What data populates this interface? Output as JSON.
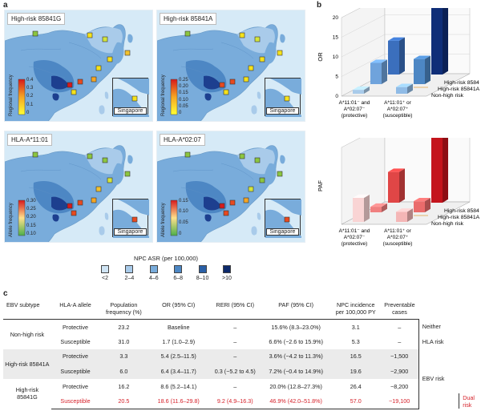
{
  "panels": {
    "a": "a",
    "b": "b",
    "c": "c"
  },
  "maps": [
    {
      "title": "High-risk 85841G",
      "cbar_title": "Regional frequency",
      "ticks": [
        "0.4",
        "0.3",
        "0.2",
        "0.1",
        "0"
      ],
      "inset_label": "Singapore"
    },
    {
      "title": "High-risk 85841A",
      "cbar_title": "Regional frequency",
      "ticks": [
        "0.25",
        "0.20",
        "0.15",
        "0.10",
        "0.05",
        "0"
      ],
      "inset_label": "Singapore"
    },
    {
      "title": "HLA-A*11:01",
      "cbar_title": "Allele frequency",
      "ticks": [
        "0.30",
        "0.25",
        "0.20",
        "0.15",
        "0.10"
      ],
      "inset_label": "Singapore"
    },
    {
      "title": "HLA-A*02:07",
      "cbar_title": "Allele frequency",
      "ticks": [
        "0.15",
        "0.10",
        "0.05",
        "0"
      ],
      "inset_label": "Singapore"
    }
  ],
  "asr_legend": {
    "title": "NPC ASR (per 100,000)",
    "items": [
      {
        "label": "<2",
        "color": "#cfe4f4"
      },
      {
        "label": "2–4",
        "color": "#a9cbea"
      },
      {
        "label": "4–6",
        "color": "#79acdb"
      },
      {
        "label": "6–8",
        "color": "#4d87c4"
      },
      {
        "label": "8–10",
        "color": "#2a5fa6"
      },
      {
        "label": ">10",
        "color": "#0d2a6b"
      }
    ]
  },
  "chart_data": [
    {
      "type": "bar",
      "chart_kind": "3d-bar",
      "ylabel": "OR",
      "ylim": [
        0,
        20
      ],
      "yticks": [
        "20",
        "15",
        "10",
        "5",
        "0"
      ],
      "x_categories": [
        "A*11:01⁻ and A*02:07⁻ (protective)",
        "A*11:01⁺ or A*02:07⁺ (susceptible)"
      ],
      "depth_categories": [
        "Non-high risk",
        "High-risk 85841A",
        "High-risk 85841G"
      ],
      "series": [
        {
          "name": "Non-high risk",
          "values": [
            1.0,
            1.7
          ]
        },
        {
          "name": "High-risk 85841A",
          "values": [
            5.4,
            6.4
          ]
        },
        {
          "name": "High-risk 85841G",
          "values": [
            8.6,
            18.6
          ]
        }
      ]
    },
    {
      "type": "bar",
      "chart_kind": "3d-bar",
      "ylabel": "PAF",
      "x_categories": [
        "A*11:01⁻ and A*02:07⁻ (protective)",
        "A*11:01⁺ or A*02:07⁺ (susceptible)"
      ],
      "depth_categories": [
        "Non-high risk",
        "High-risk 85841A",
        "High-risk 85841G"
      ],
      "series": [
        {
          "name": "Non-high risk",
          "values": [
            15.6,
            6.6
          ]
        },
        {
          "name": "High-risk 85841A",
          "values": [
            3.6,
            7.2
          ]
        },
        {
          "name": "High-risk 85841G",
          "values": [
            20.0,
            46.9
          ]
        }
      ]
    }
  ],
  "table": {
    "headers": [
      "EBV subtype",
      "HLA-A allele",
      "Population frequency (%)",
      "OR (95% CI)",
      "RERI (95% CI)",
      "PAF (95% CI)",
      "NPC incidence per 100,000 PY",
      "Preventable cases"
    ],
    "group_labels": [
      "Non-high risk",
      "High-risk 85841A",
      "High-risk 85841G"
    ],
    "rows": [
      {
        "allele": "Protective",
        "freq": "23.2",
        "or": "Baseline",
        "reri": "–",
        "paf": "15.6% (8.3–23.0%)",
        "inc": "3.1",
        "prev": "–",
        "risk": "Neither"
      },
      {
        "allele": "Susceptible",
        "freq": "31.0",
        "or": "1.7 (1.0–2.9)",
        "reri": "–",
        "paf": "6.6% (−2.6 to 15.9%)",
        "inc": "5.3",
        "prev": "–",
        "risk": "HLA risk"
      },
      {
        "allele": "Protective",
        "freq": "3.3",
        "or": "5.4 (2.5–11.5)",
        "reri": "–",
        "paf": "3.6% (−4.2 to 11.3%)",
        "inc": "16.5",
        "prev": "~1,500",
        "risk": ""
      },
      {
        "allele": "Susceptible",
        "freq": "6.0",
        "or": "6.4 (3.4–11.7)",
        "reri": "0.3 (−5.2 to 4.5)",
        "paf": "7.2% (−0.4 to 14.9%)",
        "inc": "19.6",
        "prev": "~2,900",
        "risk": "EBV risk"
      },
      {
        "allele": "Protective",
        "freq": "16.2",
        "or": "8.6 (5.2–14.1)",
        "reri": "–",
        "paf": "20.0% (12.8–27.3%)",
        "inc": "26.4",
        "prev": "~8,200",
        "risk": ""
      },
      {
        "allele": "Susceptible",
        "freq": "20.5",
        "or": "18.6 (11.6–29.8)",
        "reri": "9.2 (4.9–16.3)",
        "paf": "46.9% (42.0–51.8%)",
        "inc": "57.0",
        "prev": "~19,100",
        "risk": "Dual risk"
      }
    ]
  },
  "colors": {
    "ocean": "#d6eaf7",
    "blue_dark": "#0f2e78",
    "blue_light": "#8fbbe6",
    "red_dark": "#c4141c",
    "red_light": "#f4b6b6",
    "dual_risk_red": "#d6212a"
  }
}
